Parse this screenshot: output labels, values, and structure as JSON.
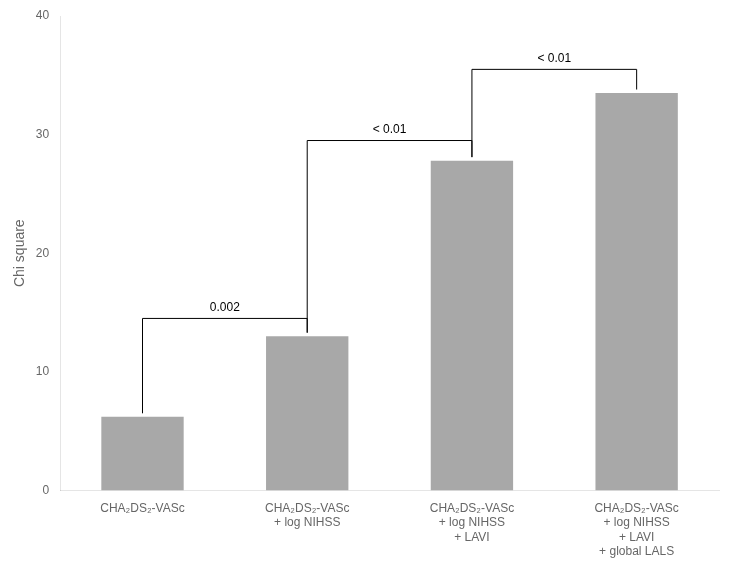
{
  "chart_data": {
    "type": "bar",
    "categories": [
      "CHA₂DS₂-VASc",
      "CHA₂DS₂-VASc\n+ log NIHSS",
      "CHA₂DS₂-VASc\n+ log NIHSS\n+ LAVI",
      "CHA₂DS₂-VASc\n+ log NIHSS\n+ LAVI\n+ global LALS"
    ],
    "values": [
      6.2,
      13.0,
      27.8,
      33.5
    ],
    "color": "#a8a8a8",
    "ylabel": "Chi square",
    "ylim": [
      0,
      40
    ],
    "yticks": [
      0,
      10,
      20,
      30,
      40
    ],
    "grid": false,
    "annotations": [
      {
        "label": "0.002",
        "x1": 0,
        "x2": 1,
        "y": 14.5,
        "label_y": 14.9
      },
      {
        "label": "< 0.01",
        "x1": 1,
        "x2": 2,
        "y": 29.5,
        "label_y": 29.9
      },
      {
        "label": "< 0.01",
        "x1": 2,
        "x2": 3,
        "y": 35.5,
        "label_y": 35.9
      }
    ]
  }
}
